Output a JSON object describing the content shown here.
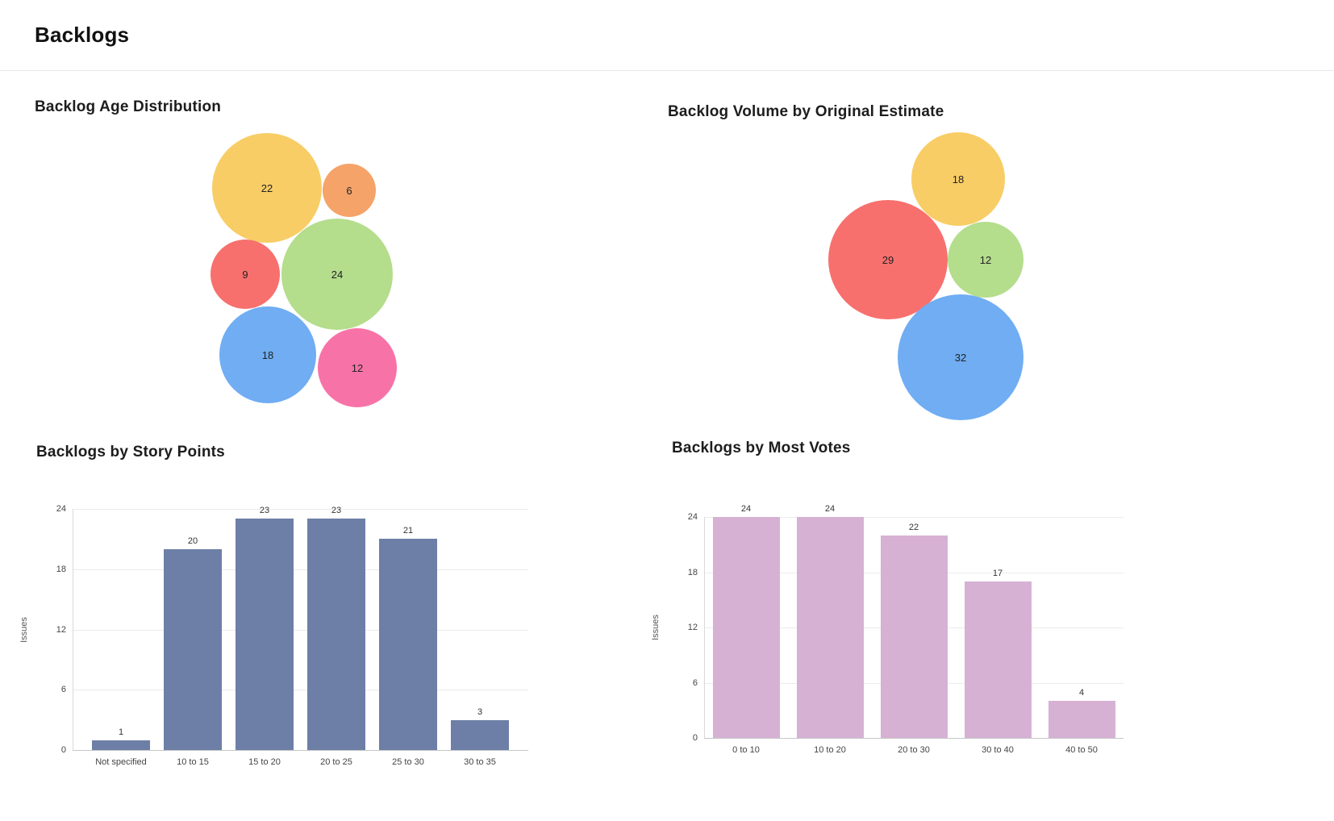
{
  "page": {
    "title": "Backlogs"
  },
  "chart_data": [
    {
      "type": "bubble",
      "title": "Backlog Age Distribution",
      "points": [
        {
          "value": 22,
          "color": "#f8cd66"
        },
        {
          "value": 6,
          "color": "#f5a368"
        },
        {
          "value": 9,
          "color": "#f7706e"
        },
        {
          "value": 24,
          "color": "#b4dd8c"
        },
        {
          "value": 18,
          "color": "#70adf3"
        },
        {
          "value": 12,
          "color": "#f773a7"
        }
      ]
    },
    {
      "type": "bubble",
      "title": "Backlog Volume by Original Estimate",
      "points": [
        {
          "value": 18,
          "color": "#f8cd66"
        },
        {
          "value": 29,
          "color": "#f7706e"
        },
        {
          "value": 12,
          "color": "#b4dd8c"
        },
        {
          "value": 32,
          "color": "#70adf3"
        }
      ]
    },
    {
      "type": "bar",
      "title": "Backlogs by Story Points",
      "categories": [
        "Not specified",
        "10 to 15",
        "15 to 20",
        "20 to 25",
        "25 to 30",
        "30 to 35"
      ],
      "values": [
        1,
        20,
        23,
        23,
        21,
        3
      ],
      "xlabel": "",
      "ylabel": "Issues",
      "ylim": [
        0,
        24
      ],
      "yticks": [
        0,
        6,
        12,
        18,
        24
      ],
      "grid": true,
      "color": "#6d7fa6"
    },
    {
      "type": "bar",
      "title": "Backlogs by Most Votes",
      "categories": [
        "0 to 10",
        "10 to 20",
        "20 to 30",
        "30 to 40",
        "40 to 50"
      ],
      "values": [
        24,
        24,
        22,
        17,
        4
      ],
      "xlabel": "",
      "ylabel": "Issues",
      "ylim": [
        0,
        24
      ],
      "yticks": [
        0,
        6,
        12,
        18,
        24
      ],
      "grid": true,
      "color": "#d6b1d4"
    }
  ]
}
